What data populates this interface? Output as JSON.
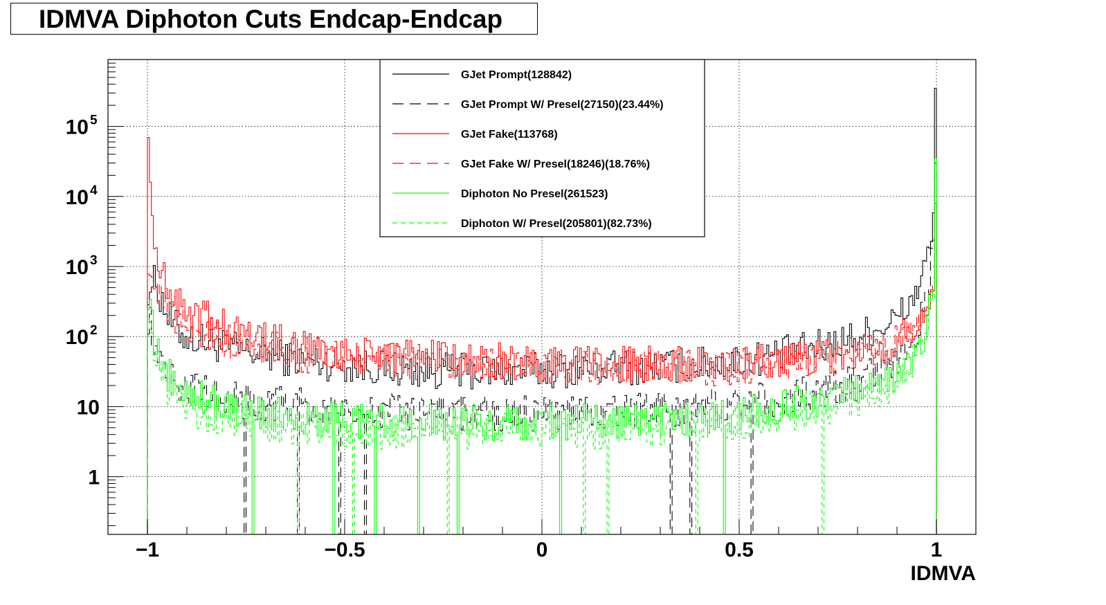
{
  "chart_data": {
    "type": "line",
    "title": "IDMVA Diphoton Cuts Endcap-Endcap",
    "xlabel": "IDMVA",
    "ylabel": "",
    "xlim": [
      -1.1,
      1.1
    ],
    "ylim": [
      0.15,
      900000
    ],
    "y_scale": "log",
    "grid": true,
    "legend_position": "top-center",
    "x_ticks": [
      {
        "value": -1,
        "label": "−1"
      },
      {
        "value": -0.5,
        "label": "−0.5"
      },
      {
        "value": 0,
        "label": "0"
      },
      {
        "value": 0.5,
        "label": "0.5"
      },
      {
        "value": 1,
        "label": "1"
      }
    ],
    "y_ticks": [
      {
        "value": 1,
        "base": "1",
        "exp": ""
      },
      {
        "value": 10,
        "base": "10",
        "exp": ""
      },
      {
        "value": 100,
        "base": "10",
        "exp": "2"
      },
      {
        "value": 1000,
        "base": "10",
        "exp": "3"
      },
      {
        "value": 10000,
        "base": "10",
        "exp": "4"
      },
      {
        "value": 100000,
        "base": "10",
        "exp": "5"
      }
    ],
    "series": [
      {
        "name": "GJet Prompt(128842)",
        "color": "#000000",
        "dash": "solid",
        "points": [
          [
            -1,
            500
          ],
          [
            -0.98,
            600
          ],
          [
            -0.96,
            300
          ],
          [
            -0.94,
            160
          ],
          [
            -0.92,
            120
          ],
          [
            -0.9,
            100
          ],
          [
            -0.85,
            85
          ],
          [
            -0.8,
            70
          ],
          [
            -0.75,
            60
          ],
          [
            -0.7,
            55
          ],
          [
            -0.6,
            45
          ],
          [
            -0.5,
            40
          ],
          [
            -0.4,
            36
          ],
          [
            -0.3,
            33
          ],
          [
            -0.2,
            32
          ],
          [
            -0.1,
            32
          ],
          [
            0,
            33
          ],
          [
            0.1,
            34
          ],
          [
            0.2,
            36
          ],
          [
            0.3,
            38
          ],
          [
            0.4,
            40
          ],
          [
            0.5,
            45
          ],
          [
            0.6,
            55
          ],
          [
            0.7,
            70
          ],
          [
            0.8,
            100
          ],
          [
            0.85,
            130
          ],
          [
            0.9,
            180
          ],
          [
            0.93,
            280
          ],
          [
            0.95,
            450
          ],
          [
            0.97,
            900
          ],
          [
            0.98,
            1500
          ],
          [
            0.99,
            3500
          ],
          [
            1,
            350000
          ]
        ]
      },
      {
        "name": "GJet Prompt W/ Presel(27150)(23.44%)",
        "color": "#000000",
        "dash": "long",
        "points": [
          [
            -1,
            200
          ],
          [
            -0.98,
            90
          ],
          [
            -0.96,
            40
          ],
          [
            -0.94,
            28
          ],
          [
            -0.92,
            22
          ],
          [
            -0.9,
            18
          ],
          [
            -0.85,
            15
          ],
          [
            -0.8,
            13
          ],
          [
            -0.7,
            11
          ],
          [
            -0.6,
            10
          ],
          [
            -0.5,
            9
          ],
          [
            -0.4,
            8.5
          ],
          [
            -0.3,
            8
          ],
          [
            -0.2,
            8
          ],
          [
            -0.1,
            8
          ],
          [
            0,
            8
          ],
          [
            0.1,
            8
          ],
          [
            0.2,
            8.5
          ],
          [
            0.3,
            9
          ],
          [
            0.4,
            10
          ],
          [
            0.5,
            11
          ],
          [
            0.6,
            13
          ],
          [
            0.7,
            16
          ],
          [
            0.8,
            22
          ],
          [
            0.85,
            30
          ],
          [
            0.9,
            45
          ],
          [
            0.93,
            70
          ],
          [
            0.95,
            120
          ],
          [
            0.97,
            250
          ],
          [
            0.98,
            500
          ],
          [
            0.99,
            1500
          ],
          [
            1,
            30000
          ]
        ]
      },
      {
        "name": "GJet Fake(113768)",
        "color": "#ff0000",
        "dash": "solid",
        "points": [
          [
            -1,
            300000
          ],
          [
            -0.99,
            5000
          ],
          [
            -0.98,
            2500
          ],
          [
            -0.97,
            1200
          ],
          [
            -0.96,
            700
          ],
          [
            -0.94,
            450
          ],
          [
            -0.92,
            320
          ],
          [
            -0.9,
            250
          ],
          [
            -0.85,
            180
          ],
          [
            -0.8,
            130
          ],
          [
            -0.75,
            110
          ],
          [
            -0.7,
            90
          ],
          [
            -0.6,
            70
          ],
          [
            -0.5,
            60
          ],
          [
            -0.4,
            55
          ],
          [
            -0.3,
            50
          ],
          [
            -0.2,
            48
          ],
          [
            -0.1,
            45
          ],
          [
            0,
            42
          ],
          [
            0.1,
            40
          ],
          [
            0.2,
            40
          ],
          [
            0.3,
            40
          ],
          [
            0.4,
            40
          ],
          [
            0.5,
            42
          ],
          [
            0.6,
            45
          ],
          [
            0.7,
            50
          ],
          [
            0.8,
            60
          ],
          [
            0.85,
            70
          ],
          [
            0.9,
            90
          ],
          [
            0.93,
            120
          ],
          [
            0.95,
            160
          ],
          [
            0.97,
            220
          ],
          [
            0.98,
            300
          ],
          [
            0.99,
            450
          ],
          [
            1,
            8000
          ]
        ]
      },
      {
        "name": "GJet Fake W/ Presel(18246)(18.76%)",
        "color": "#ff0000",
        "dash": "long",
        "points": [
          [
            -1,
            1200
          ],
          [
            -0.98,
            700
          ],
          [
            -0.96,
            350
          ],
          [
            -0.94,
            230
          ],
          [
            -0.92,
            170
          ],
          [
            -0.9,
            140
          ],
          [
            -0.85,
            110
          ],
          [
            -0.8,
            90
          ],
          [
            -0.75,
            80
          ],
          [
            -0.7,
            70
          ],
          [
            -0.6,
            55
          ],
          [
            -0.5,
            50
          ],
          [
            -0.4,
            45
          ],
          [
            -0.3,
            42
          ],
          [
            -0.2,
            40
          ],
          [
            -0.1,
            38
          ],
          [
            0,
            36
          ],
          [
            0.1,
            35
          ],
          [
            0.2,
            35
          ],
          [
            0.3,
            35
          ],
          [
            0.4,
            35
          ],
          [
            0.5,
            37
          ],
          [
            0.6,
            40
          ],
          [
            0.7,
            45
          ],
          [
            0.8,
            55
          ],
          [
            0.85,
            65
          ],
          [
            0.9,
            80
          ],
          [
            0.93,
            110
          ],
          [
            0.95,
            150
          ],
          [
            0.97,
            200
          ],
          [
            0.98,
            280
          ],
          [
            0.99,
            420
          ],
          [
            1,
            7000
          ]
        ]
      },
      {
        "name": "Diphoton No Presel(261523)",
        "color": "#00ff00",
        "dash": "solid",
        "points": [
          [
            -1,
            400
          ],
          [
            -0.98,
            70
          ],
          [
            -0.96,
            35
          ],
          [
            -0.94,
            25
          ],
          [
            -0.92,
            20
          ],
          [
            -0.9,
            16
          ],
          [
            -0.85,
            13
          ],
          [
            -0.8,
            10
          ],
          [
            -0.7,
            8
          ],
          [
            -0.6,
            7
          ],
          [
            -0.5,
            6.5
          ],
          [
            -0.4,
            6
          ],
          [
            -0.3,
            6
          ],
          [
            -0.2,
            6
          ],
          [
            -0.1,
            6
          ],
          [
            0,
            6
          ],
          [
            0.1,
            6
          ],
          [
            0.2,
            6
          ],
          [
            0.3,
            6.5
          ],
          [
            0.4,
            7
          ],
          [
            0.5,
            8
          ],
          [
            0.6,
            10
          ],
          [
            0.7,
            12
          ],
          [
            0.8,
            16
          ],
          [
            0.85,
            20
          ],
          [
            0.9,
            28
          ],
          [
            0.93,
            40
          ],
          [
            0.95,
            60
          ],
          [
            0.97,
            110
          ],
          [
            0.98,
            200
          ],
          [
            0.99,
            500
          ],
          [
            1,
            35000
          ]
        ]
      },
      {
        "name": "Diphoton W/ Presel(205801)(82.73%)",
        "color": "#00ff00",
        "dash": "short",
        "points": [
          [
            -1,
            300
          ],
          [
            -0.98,
            50
          ],
          [
            -0.96,
            25
          ],
          [
            -0.94,
            17
          ],
          [
            -0.92,
            13
          ],
          [
            -0.9,
            10
          ],
          [
            -0.85,
            8
          ],
          [
            -0.8,
            7
          ],
          [
            -0.7,
            5.5
          ],
          [
            -0.6,
            5
          ],
          [
            -0.5,
            4.5
          ],
          [
            -0.4,
            4.5
          ],
          [
            -0.3,
            4.5
          ],
          [
            -0.2,
            4.5
          ],
          [
            -0.1,
            4.5
          ],
          [
            0,
            4.5
          ],
          [
            0.1,
            4.5
          ],
          [
            0.2,
            4.5
          ],
          [
            0.3,
            5
          ],
          [
            0.4,
            5.5
          ],
          [
            0.5,
            6
          ],
          [
            0.6,
            7.5
          ],
          [
            0.7,
            9.5
          ],
          [
            0.8,
            13
          ],
          [
            0.85,
            16
          ],
          [
            0.9,
            22
          ],
          [
            0.93,
            32
          ],
          [
            0.95,
            50
          ],
          [
            0.97,
            90
          ],
          [
            0.98,
            170
          ],
          [
            0.99,
            420
          ],
          [
            1,
            30000
          ]
        ]
      }
    ]
  }
}
